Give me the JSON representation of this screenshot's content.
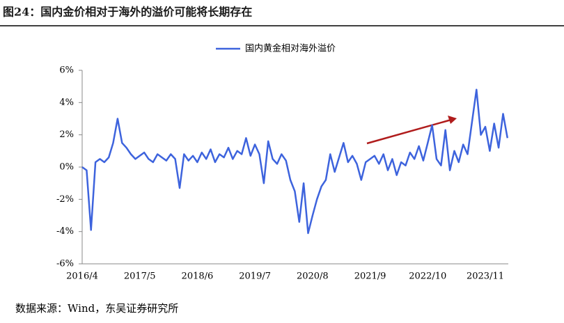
{
  "chart_data": {
    "type": "line",
    "title": "图24：国内金价相对于海外的溢价可能将长期存在",
    "source": "数据来源：Wind，东吴证券研究所",
    "categories": [
      "2016/4",
      null,
      null,
      null,
      null,
      null,
      null,
      null,
      null,
      null,
      null,
      null,
      null,
      "2017/5",
      null,
      null,
      null,
      null,
      null,
      null,
      null,
      null,
      null,
      null,
      null,
      null,
      "2018/6",
      null,
      null,
      null,
      null,
      null,
      null,
      null,
      null,
      null,
      null,
      null,
      null,
      "2019/7",
      null,
      null,
      null,
      null,
      null,
      null,
      null,
      null,
      null,
      null,
      null,
      null,
      "2020/8",
      null,
      null,
      null,
      null,
      null,
      null,
      null,
      null,
      null,
      null,
      null,
      null,
      "2021/9",
      null,
      null,
      null,
      null,
      null,
      null,
      null,
      null,
      null,
      null,
      null,
      null,
      "2022/10",
      null,
      null,
      null,
      null,
      null,
      null,
      null,
      null,
      null,
      null,
      null,
      null,
      "2023/11",
      null,
      null,
      null,
      null,
      null
    ],
    "series": [
      {
        "name": "国内黄金相对海外溢价",
        "color": "#3d63dd",
        "values": [
          0,
          -0.2,
          -3.9,
          0.3,
          0.5,
          0.3,
          0.6,
          1.5,
          3.0,
          1.5,
          1.2,
          0.8,
          0.5,
          0.7,
          0.9,
          0.5,
          0.3,
          0.8,
          0.6,
          0.4,
          0.8,
          0.5,
          -1.3,
          0.8,
          0.4,
          0.7,
          0.3,
          0.9,
          0.5,
          1.1,
          0.3,
          0.8,
          0.6,
          1.2,
          0.5,
          1.0,
          0.8,
          1.8,
          0.7,
          1.4,
          0.8,
          -1.0,
          1.6,
          0.5,
          0.2,
          0.8,
          0.4,
          -0.8,
          -1.5,
          -3.4,
          -1.0,
          -4.1,
          -3.0,
          -2.0,
          -1.2,
          -0.8,
          0.8,
          -0.3,
          0.6,
          1.5,
          0.3,
          0.7,
          0.2,
          -0.8,
          0.3,
          0.5,
          0.7,
          0.2,
          0.8,
          -0.2,
          0.5,
          -0.5,
          0.3,
          0.1,
          0.9,
          0.5,
          1.3,
          0.4,
          1.5,
          2.6,
          0.5,
          0.1,
          2.3,
          -0.2,
          1.0,
          0.3,
          1.4,
          0.8,
          2.8,
          4.8,
          2.0,
          2.5,
          1.0,
          2.7,
          1.2,
          3.3,
          1.8
        ]
      }
    ],
    "ylim": [
      -6,
      6
    ],
    "yticks": [
      {
        "value": -6,
        "label": "-6%"
      },
      {
        "value": -4,
        "label": "-4%"
      },
      {
        "value": -2,
        "label": "-2%"
      },
      {
        "value": 0,
        "label": "0%"
      },
      {
        "value": 2,
        "label": "2%"
      },
      {
        "value": 4,
        "label": "4%"
      },
      {
        "value": 6,
        "label": "6%"
      }
    ],
    "legend": "top"
  }
}
